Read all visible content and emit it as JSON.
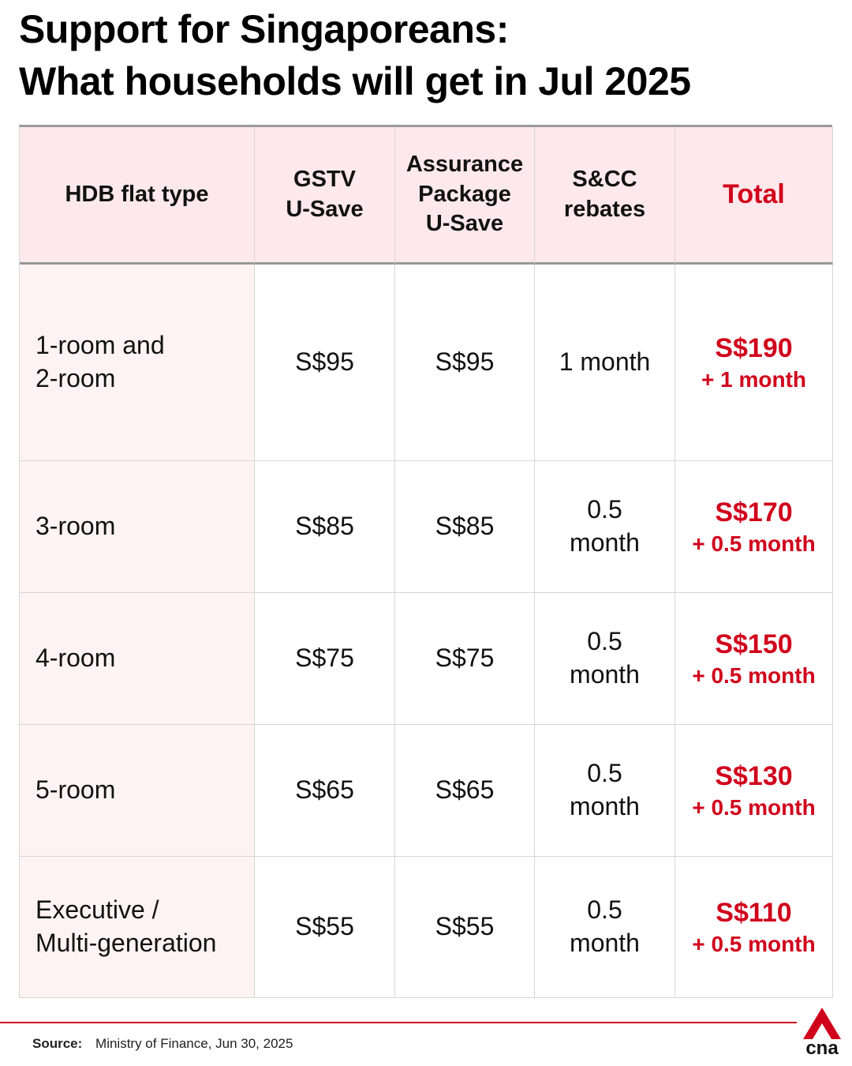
{
  "header": {
    "title_lines": [
      "Support for Singaporeans:",
      "What households will get in Jul 2025"
    ]
  },
  "table": {
    "columns": [
      [
        "HDB flat type"
      ],
      [
        "GSTV",
        "U-Save"
      ],
      [
        "Assurance",
        "Package",
        "U-Save"
      ],
      [
        "S&CC",
        "rebates"
      ],
      [
        "Total"
      ]
    ],
    "rows": [
      [
        [
          "1-room and",
          "2-room"
        ],
        [
          "S$95"
        ],
        [
          "S$95"
        ],
        [
          "1 month"
        ],
        [
          "S$190",
          "+ 1 month"
        ]
      ],
      [
        [
          "3-room"
        ],
        [
          "S$85"
        ],
        [
          "S$85"
        ],
        [
          "0.5",
          "month"
        ],
        [
          "S$170",
          "+ 0.5 month"
        ]
      ],
      [
        [
          "4-room"
        ],
        [
          "S$75"
        ],
        [
          "S$75"
        ],
        [
          "0.5",
          "month"
        ],
        [
          "S$150",
          "+ 0.5 month"
        ]
      ],
      [
        [
          "5-room"
        ],
        [
          "S$65"
        ],
        [
          "S$65"
        ],
        [
          "0.5",
          "month"
        ],
        [
          "S$130",
          "+ 0.5 month"
        ]
      ],
      [
        [
          "Executive /",
          "Multi-generation"
        ],
        [
          "S$55"
        ],
        [
          "S$55"
        ],
        [
          "0.5",
          "month"
        ],
        [
          "S$110",
          "+ 0.5 month"
        ]
      ]
    ]
  },
  "footer": {
    "source_label": "Source:",
    "source_text": "Ministry of Finance, Jun 30, 2025",
    "logo": "cna"
  }
}
